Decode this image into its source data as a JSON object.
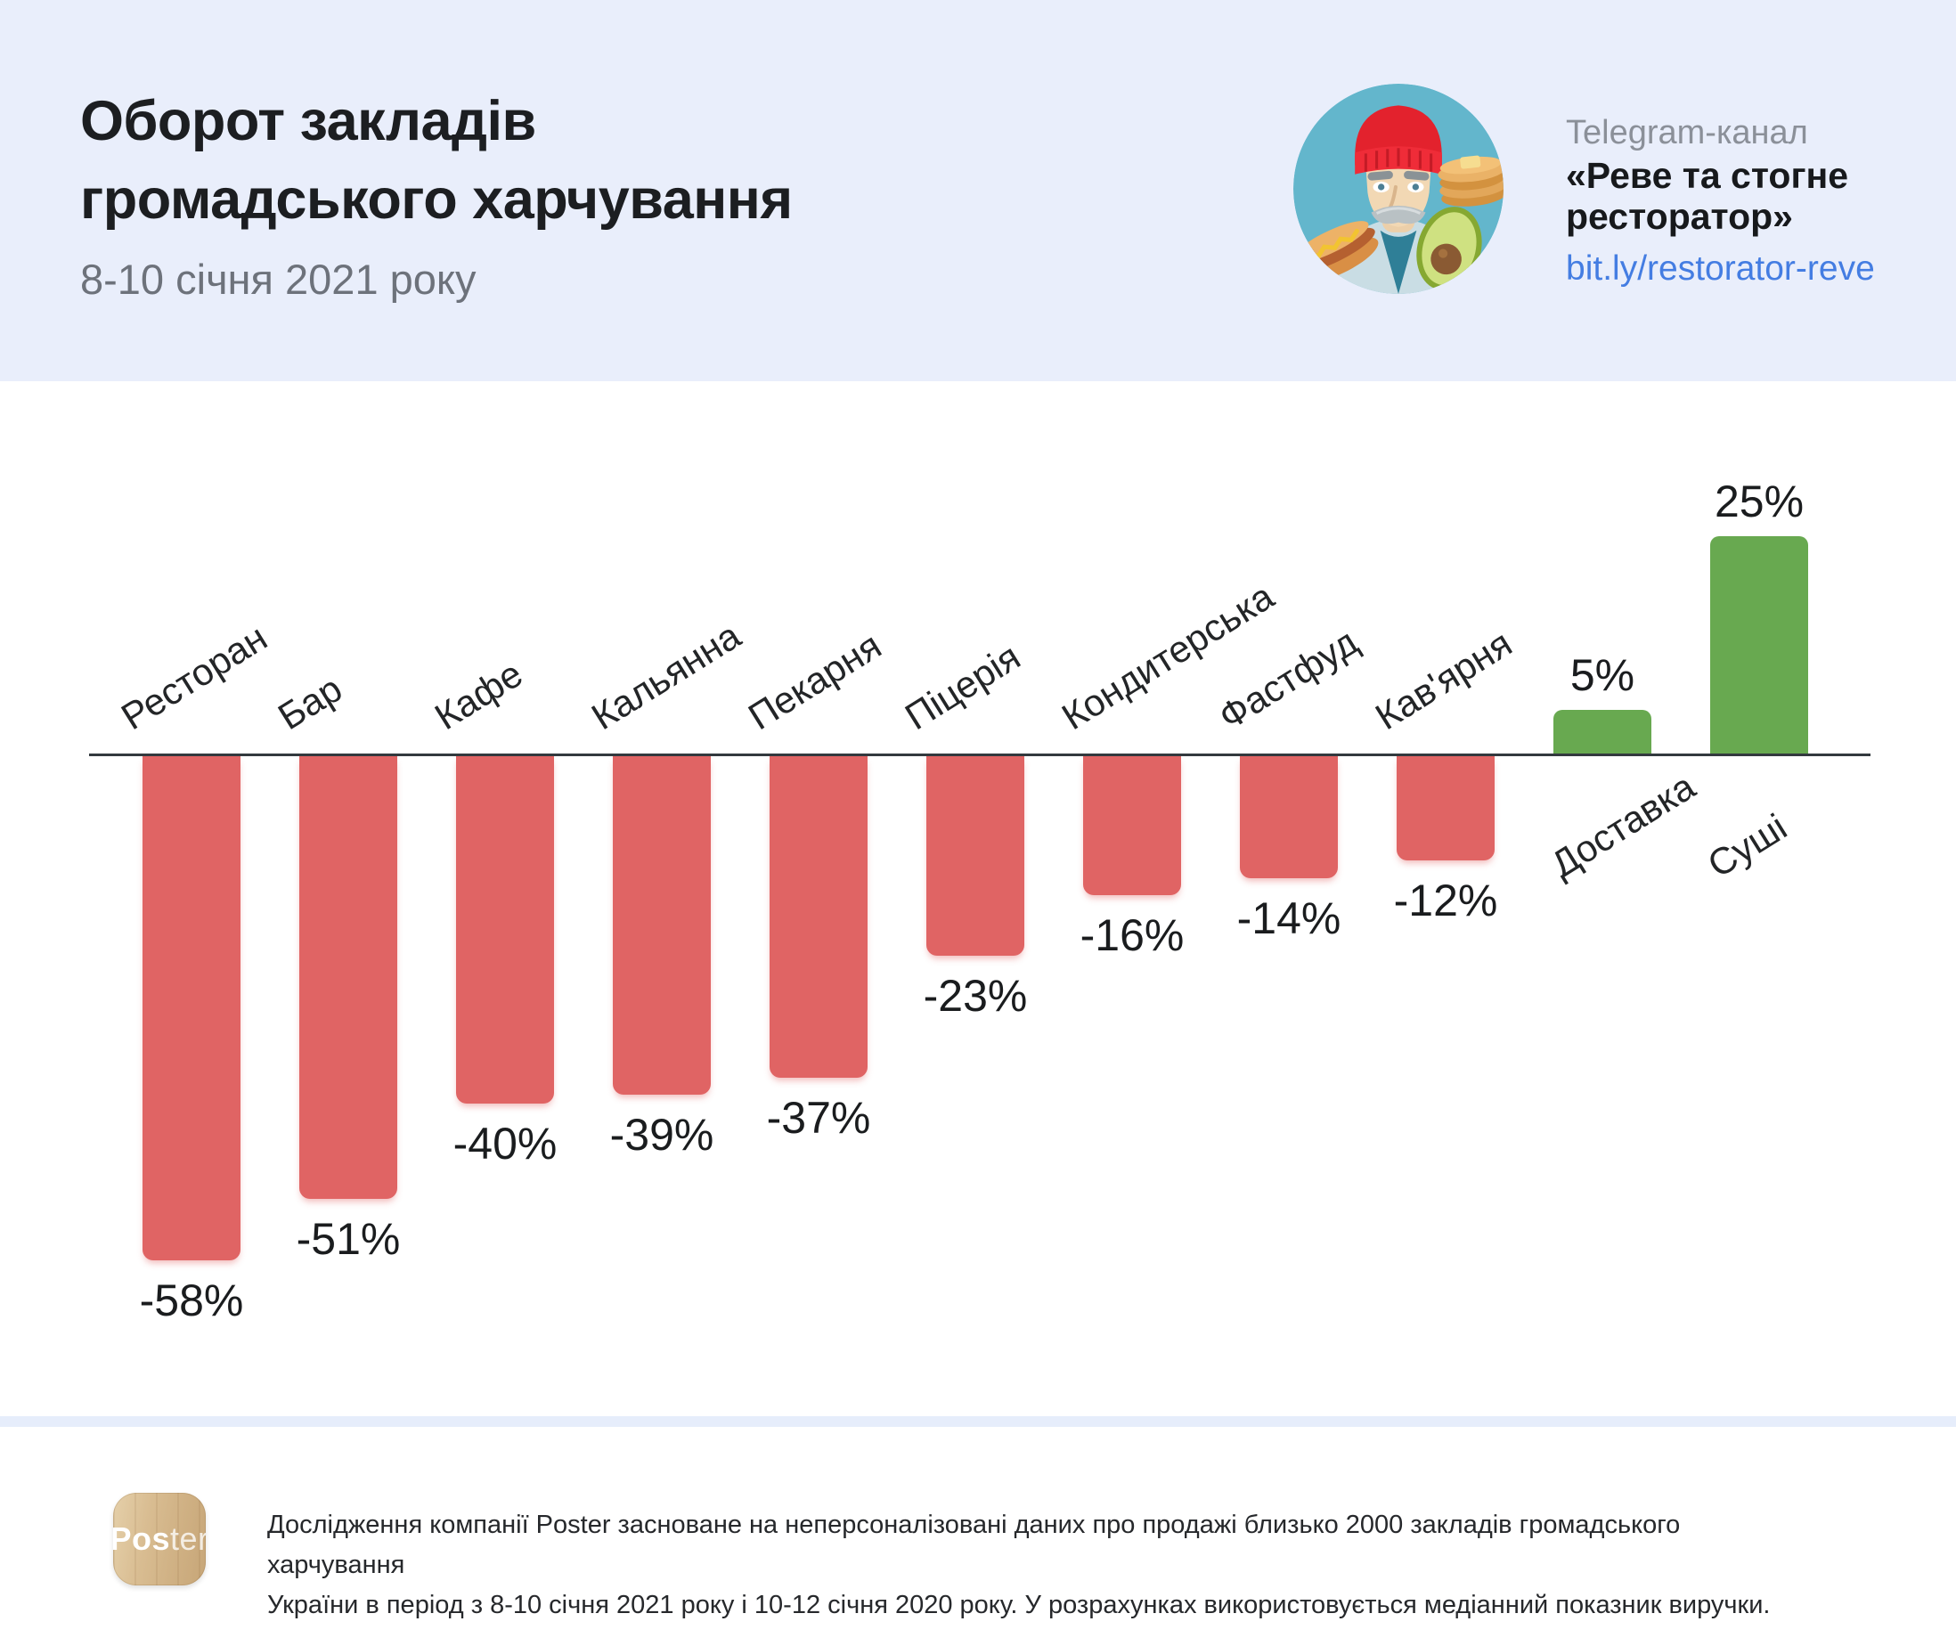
{
  "header": {
    "title_line1": "Оборот закладів",
    "title_line2": "громадського харчування",
    "subtitle": "8-10 січня 2021 року",
    "background_color": "#e9eefb",
    "telegram": {
      "label": "Telegram-канал",
      "channel_line1": "«Реве та стогне",
      "channel_line2": "ресторатор»",
      "link": "bit.ly/restorator-reve",
      "link_color": "#447de2",
      "avatar": "man-in-red-beanie-with-hotdog-avocado-pancakes"
    }
  },
  "chart_data": {
    "type": "bar",
    "title": "Оборот закладів громадського харчування, 8-10 січня 2021 року",
    "unit": "%",
    "categories": [
      "Ресторан",
      "Бар",
      "Кафе",
      "Кальянна",
      "Пекарня",
      "Піцерія",
      "Кондитерська",
      "Фастфуд",
      "Кав'ярня",
      "Доставка",
      "Суші"
    ],
    "values": [
      -58,
      -51,
      -40,
      -39,
      -37,
      -23,
      -16,
      -14,
      -12,
      5,
      25
    ],
    "value_labels": [
      "-58%",
      "-51%",
      "-40%",
      "-39%",
      "-37%",
      "-23%",
      "-16%",
      "-14%",
      "-12%",
      "5%",
      "25%"
    ],
    "baseline": 0,
    "ylim": [
      -60,
      27
    ],
    "grid": "off",
    "legend": "none",
    "colors": {
      "negative_bar": "#e06464",
      "positive_bar": "#68a950",
      "axis_line": "#33393e",
      "value_label": "#1a1c1e",
      "category_label": "#232527"
    }
  },
  "footer": {
    "logo_text_bold": "Pos",
    "logo_text_light": "ter",
    "line1": "Дослідження компанії Poster засноване на неперсоналізовані даних про продажі близько 2000 закладів громадського харчування",
    "line2": "України в період з 8-10 січня 2021 року і 10-12 січня 2020 року. У розрахунках використовується медіанний показник виручки."
  }
}
